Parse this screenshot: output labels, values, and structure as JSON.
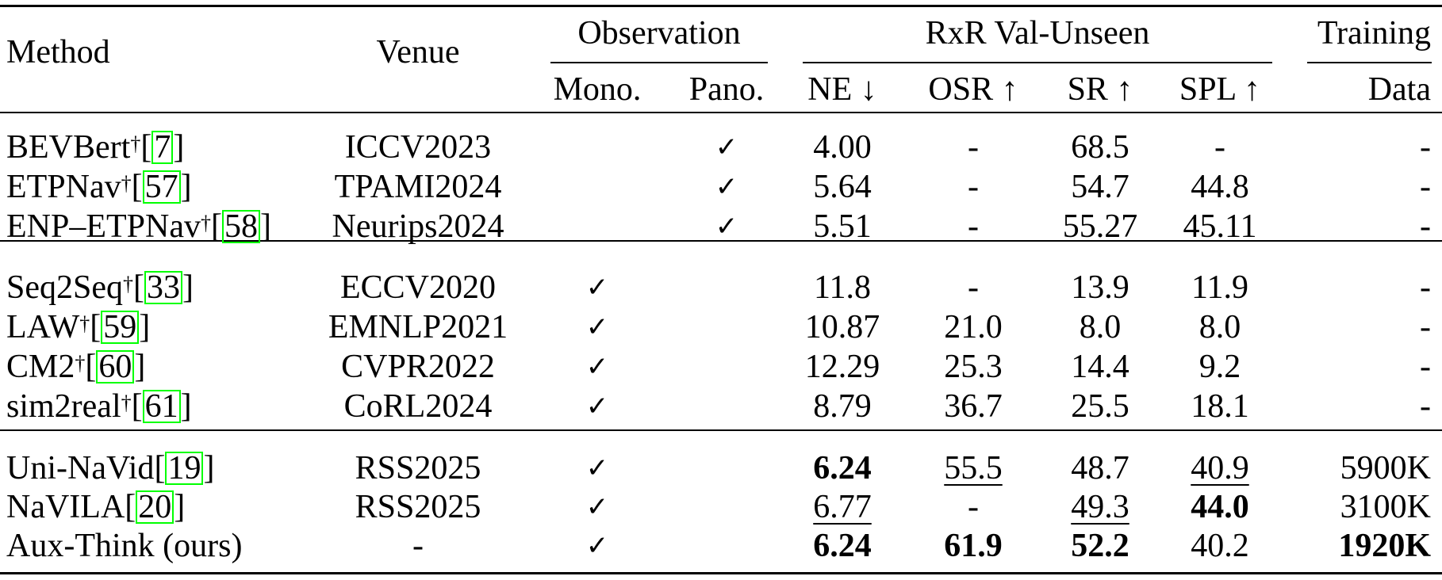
{
  "header": {
    "method": "Method",
    "venue": "Venue",
    "observation": "Observation",
    "rxr": "RxR Val-Unseen",
    "training": "Training",
    "mono": "Mono.",
    "pano": "Pano.",
    "ne": "NE ↓",
    "osr": "OSR ↑",
    "sr": "SR ↑",
    "spl": "SPL ↑",
    "data": "Data"
  },
  "rows": [
    {
      "name": "BEVBert",
      "dagger": "†",
      "ref": "7",
      "venue": "ICCV2023",
      "mono": "",
      "pano": "✓",
      "ne": "4.00",
      "osr": "-",
      "sr": "68.5",
      "spl": "-",
      "data": "-"
    },
    {
      "name": "ETPNav",
      "dagger": "†",
      "ref": "57",
      "venue": "TPAMI2024",
      "mono": "",
      "pano": "✓",
      "ne": "5.64",
      "osr": "-",
      "sr": "54.7",
      "spl": "44.8",
      "data": "-"
    },
    {
      "name": "ENP–ETPNav",
      "dagger": "†",
      "ref": "58",
      "venue": "Neurips2024",
      "mono": "",
      "pano": "✓",
      "ne": "5.51",
      "osr": "-",
      "sr": "55.27",
      "spl": "45.11",
      "data": "-"
    },
    {
      "name": "Seq2Seq",
      "dagger": "†",
      "ref": "33",
      "venue": "ECCV2020",
      "mono": "✓",
      "pano": "",
      "ne": "11.8",
      "osr": "-",
      "sr": "13.9",
      "spl": "11.9",
      "data": "-"
    },
    {
      "name": "LAW",
      "dagger": "†",
      "ref": "59",
      "venue": "EMNLP2021",
      "mono": "✓",
      "pano": "",
      "ne": "10.87",
      "osr": "21.0",
      "sr": "8.0",
      "spl": "8.0",
      "data": "-"
    },
    {
      "name": "CM2",
      "dagger": "†",
      "ref": "60",
      "venue": "CVPR2022",
      "mono": "✓",
      "pano": "",
      "ne": "12.29",
      "osr": "25.3",
      "sr": "14.4",
      "spl": "9.2",
      "data": "-"
    },
    {
      "name": "sim2real",
      "dagger": "†",
      "ref": "61",
      "venue": "CoRL2024",
      "mono": "✓",
      "pano": "",
      "ne": "8.79",
      "osr": "36.7",
      "sr": "25.5",
      "spl": "18.1",
      "data": "-"
    },
    {
      "name": "Uni-NaVid",
      "dagger": "",
      "ref": "19",
      "venue": "RSS2025",
      "mono": "✓",
      "pano": "",
      "ne": "6.24",
      "osr": "55.5",
      "sr": "48.7",
      "spl": "40.9",
      "data": "5900K"
    },
    {
      "name": "NaVILA",
      "dagger": "",
      "ref": "20",
      "venue": "RSS2025",
      "mono": "✓",
      "pano": "",
      "ne": "6.77",
      "osr": "-",
      "sr": "49.3",
      "spl": "44.0",
      "data": "3100K"
    },
    {
      "name": "Aux-Think (ours)",
      "dagger": "",
      "ref": "",
      "venue": "-",
      "mono": "✓",
      "pano": "",
      "ne": "6.24",
      "osr": "61.9",
      "sr": "52.2",
      "spl": "40.2",
      "data": "1920K"
    }
  ]
}
